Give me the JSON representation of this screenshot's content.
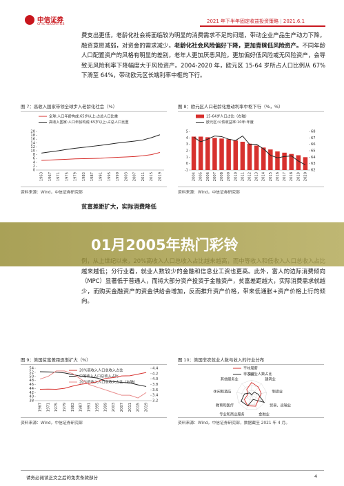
{
  "header": {
    "brand": "中信证券",
    "brand_en": "CITIC SECURITIES",
    "report": "2021 年下半年固定收益投资策略",
    "date": "2021.6.1"
  },
  "paragraph_1": {
    "before": "费支出更低，老龄化社会将面临较为明显的消费需求不足的问题，带动企业产品生产动力下降，融资意愿减弱，对资金的需求减少。",
    "bold": "老龄化社会风险偏好下降，更加青睐低风险资产。",
    "after": "不同年龄人口配置资产的风格有明显的差别，老年人更加厌恶风险，更加偏好低风险或无风险资产，会导致无风险利率下降幅度大于风险资产。2004-2020 年，欧元区 15-64 岁所占人口比例从 67%下滑至 64%，带动欧元区长端利率中枢的下行。"
  },
  "figures": [
    {
      "caption": "图 7：高收入国家带领全球步入老龄化社会（%）",
      "source": "资料来源：Wind，中信证券研究部"
    },
    {
      "caption": "图 8：欧元区人口老龄化推动利率中枢下行（%，%）",
      "source": "资料来源：Wind，中信证券研究部"
    },
    {
      "caption": "图 9：美国贫富差距逐渐扩大（%）",
      "source": "资料来源：Wind，中信证券研究部"
    },
    {
      "caption": "图 10：美国非农就业人数与收入的行业分布",
      "source": "资料来源：Wind，中信证券研究部，数据截至 2021 年 4 月。"
    }
  ],
  "section_heading": "贫富差距扩大，实际消费降低",
  "banner": "01月2005年热门彩铃",
  "paragraph_2": "例，从上世纪以来，20%高收入人口总收入占比越来越高，而中等收入和低收入人口总收入占比越来越低；分行业看，就业人数较少的金融和信息业工资也更高。此外，富人的边际消费倾向（MPC）显著低于普通人，而将大部分资产投资于金融资产，贫富差距越大，实际消费需求就越少，而购买金融资产的资金供给会增加，反而推升资产价格，带来低通胀+资产价格上行的倾向。",
  "footer": {
    "disclaimer": "请务必阅读正文之后的免责条款部分",
    "page": 4
  },
  "chart_data": [
    {
      "type": "line",
      "categories": [
        "1963",
        "1967",
        "1971",
        "1975",
        "1979",
        "1983",
        "1987",
        "1991",
        "1995",
        "1999",
        "2003",
        "2007",
        "2011",
        "2015",
        "2019"
      ],
      "series": [
        {
          "name": "全球:人口年龄构成:65岁以上:占总人口比重",
          "color": "#d7312e",
          "values": [
            5.0,
            5.2,
            5.4,
            5.6,
            5.8,
            5.9,
            6.0,
            6.1,
            6.4,
            6.6,
            6.8,
            7.0,
            7.4,
            8.0,
            9.1
          ]
        },
        {
          "name": "高收入国家:人口年龄构成:65岁以上:占总人口比重",
          "color": "#222222",
          "values": [
            8.8,
            9.4,
            10.0,
            10.7,
            11.3,
            11.8,
            12.3,
            12.8,
            13.4,
            14.0,
            14.5,
            15.0,
            15.6,
            16.8,
            18.3
          ]
        }
      ],
      "ylim": [
        0,
        20
      ],
      "yticks": [
        0,
        2,
        4,
        6,
        8,
        10,
        12,
        14,
        16,
        18,
        20
      ]
    },
    {
      "type": "combo",
      "categories": [
        "2004",
        "2005",
        "2006",
        "2007",
        "2008",
        "2009",
        "2010",
        "2011",
        "2012",
        "2013",
        "2014",
        "2015",
        "2016",
        "2017",
        "2018",
        "2019",
        "2020"
      ],
      "series": [
        {
          "name": "15-64岁人口占比（右轴）",
          "type": "bar",
          "axis": "y2",
          "color": "#d7312e",
          "values": [
            67.2,
            67.2,
            67.1,
            67.0,
            66.9,
            66.8,
            66.6,
            66.4,
            66.1,
            65.8,
            65.5,
            65.2,
            64.9,
            64.7,
            64.5,
            64.3,
            64.0
          ]
        },
        {
          "name": "欧元区:公债收益率:10年:年度",
          "type": "line",
          "color": "#222222",
          "values": [
            4.1,
            3.4,
            3.8,
            4.3,
            4.2,
            3.8,
            3.6,
            4.3,
            3.0,
            3.0,
            2.3,
            1.3,
            0.9,
            1.1,
            1.2,
            0.4,
            -0.2
          ]
        }
      ],
      "ylim": [
        -1,
        5
      ],
      "yticks": [
        -1,
        0,
        1,
        2,
        3,
        4,
        5
      ],
      "y2lim": [
        62,
        68
      ],
      "y2ticks": [
        62,
        63,
        64,
        65,
        66,
        67,
        68
      ]
    },
    {
      "type": "line",
      "categories": [
        "1967",
        "1971",
        "1975",
        "1979",
        "1983",
        "1987",
        "1991",
        "1995",
        "1999",
        "2003",
        "2007",
        "2011",
        "2015",
        "2019"
      ],
      "series": [
        {
          "name": "20%高收入人口总收入占比",
          "color": "#d7312e",
          "values": [
            43.6,
            43.7,
            43.6,
            44.1,
            45.2,
            46.1,
            46.6,
            47.3,
            49.0,
            49.4,
            50.2,
            50.3,
            51.1,
            51.9
          ]
        },
        {
          "name": "中等收入人口总收入占比",
          "color": "#222222",
          "values": [
            52.3,
            52.2,
            52.1,
            51.7,
            50.9,
            50.1,
            49.7,
            49.2,
            47.8,
            47.5,
            47.0,
            46.8,
            45.8,
            45.0
          ]
        },
        {
          "name": "20%低收入人口总收入占比（右轴）",
          "color": "#e88a8a",
          "axis": "y2",
          "values": [
            4.0,
            4.1,
            4.3,
            4.3,
            4.2,
            4.0,
            3.8,
            3.7,
            3.6,
            3.5,
            3.4,
            3.4,
            3.3,
            3.5
          ]
        }
      ],
      "ylim": [
        38,
        54
      ],
      "yticks": [
        38,
        40,
        42,
        44,
        46,
        48,
        50,
        52,
        54
      ],
      "y2lim": [
        3.2,
        4.4
      ],
      "y2ticks": [
        3.2,
        3.4,
        3.6,
        3.8,
        {
          "value": 4,
          "label": "4.0"
        },
        4.2,
        4.4
      ]
    },
    {
      "type": "radar",
      "categories": [
        "采矿",
        "建筑业",
        "制造业",
        "贸易、运输业",
        "金融业",
        "专业和商业服务",
        "教育和医疗",
        "休闲和酒店",
        "其他服务业"
      ],
      "series": [
        {
          "name": "平均周薪",
          "color": "#d7312e",
          "values": [
            1500,
            1250,
            1150,
            950,
            1400,
            1350,
            1000,
            450,
            900
          ]
        },
        {
          "name": "非农就业人数占比",
          "color": "#222222",
          "axis": "y2",
          "values": [
            0.4,
            5.2,
            8.5,
            19,
            6,
            15,
            16,
            9.5,
            3.8
          ]
        }
      ],
      "ylim": [
        0,
        1800
      ],
      "y2lim": [
        0,
        20
      ]
    }
  ]
}
